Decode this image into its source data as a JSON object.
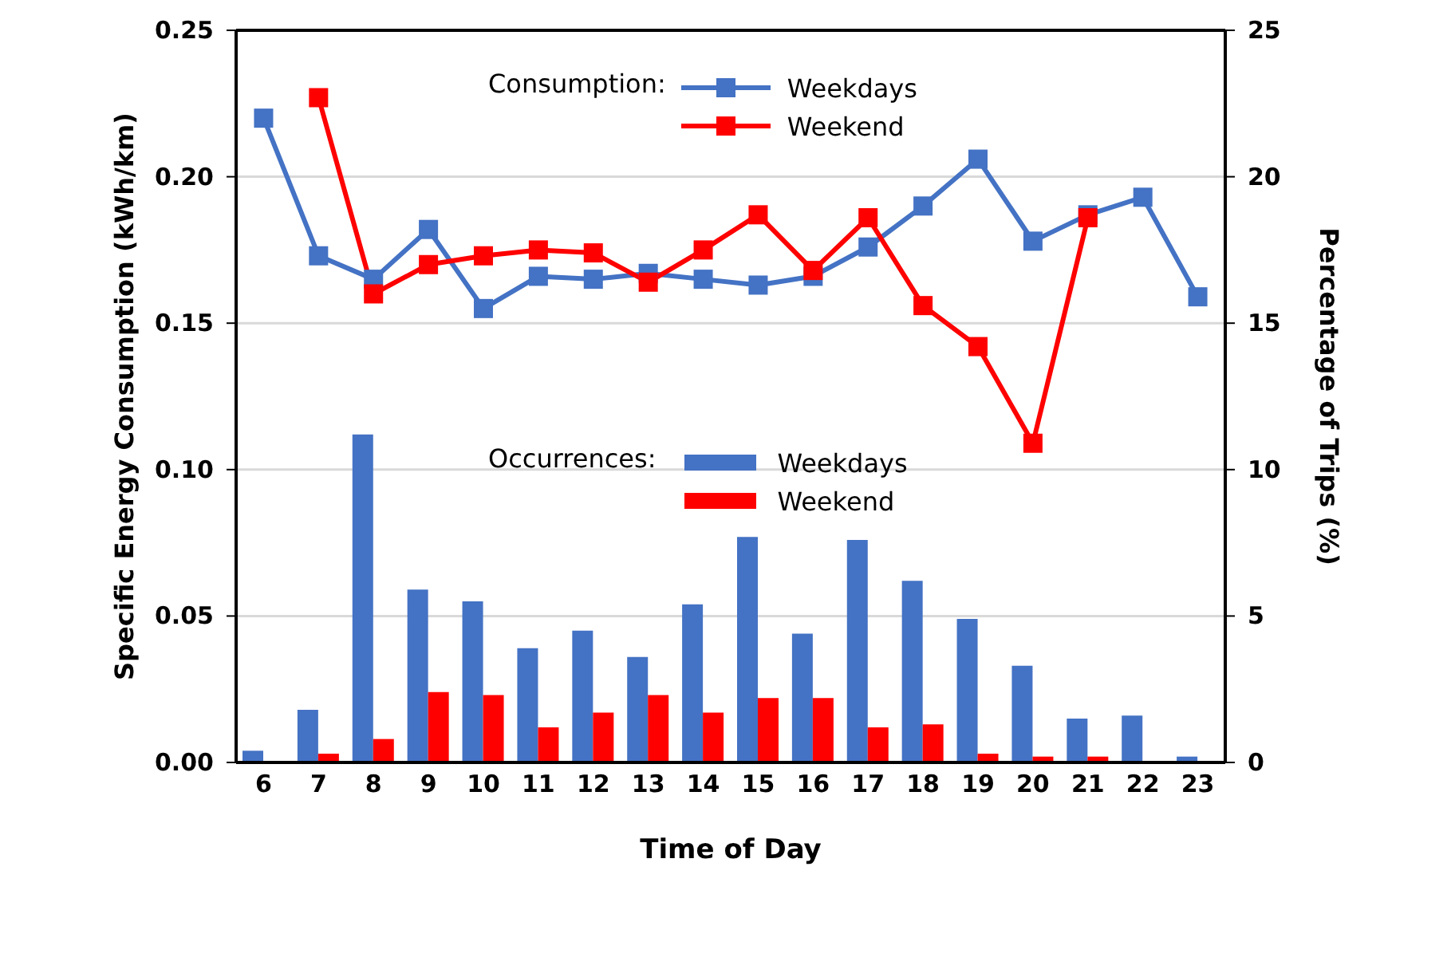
{
  "chart_data": {
    "type": "line",
    "xlabel": "Time of Day",
    "ylabel": "Specific Energy Consumption (kWh/km)",
    "y2label": "Percentage of Trips (%)",
    "categories": [
      "6",
      "7",
      "8",
      "9",
      "10",
      "11",
      "12",
      "13",
      "14",
      "15",
      "16",
      "17",
      "18",
      "19",
      "20",
      "21",
      "22",
      "23"
    ],
    "series": [
      {
        "name": "Weekdays",
        "color": "#4472c4",
        "values": [
          0.22,
          0.173,
          0.165,
          0.182,
          0.155,
          0.166,
          0.165,
          0.167,
          0.165,
          0.163,
          0.166,
          0.176,
          0.19,
          0.206,
          0.178,
          0.187,
          0.193,
          0.159
        ]
      },
      {
        "name": "Weekend",
        "color": "#ff0000",
        "values": [
          null,
          0.227,
          0.16,
          0.17,
          0.173,
          0.175,
          0.174,
          0.164,
          0.175,
          0.187,
          0.168,
          0.186,
          0.156,
          0.142,
          0.109,
          0.186,
          null,
          null
        ]
      },
      {
        "name": "Weekdays",
        "type": "bar",
        "axis": "y2",
        "color": "#4472c4",
        "values": [
          0.4,
          1.8,
          11.2,
          5.9,
          5.5,
          3.9,
          4.5,
          3.6,
          5.4,
          7.7,
          4.4,
          7.6,
          6.2,
          4.9,
          3.3,
          1.5,
          1.6,
          0.2
        ]
      },
      {
        "name": "Weekend",
        "type": "bar",
        "axis": "y2",
        "color": "#ff0000",
        "values": [
          0,
          0.3,
          0.8,
          2.4,
          2.3,
          1.2,
          1.7,
          2.3,
          1.7,
          2.2,
          2.2,
          1.2,
          1.3,
          0.3,
          0.2,
          0.2,
          0,
          0
        ]
      }
    ],
    "ylim": [
      0,
      0.25
    ],
    "yticks": [
      {
        "value": 0,
        "label": "0.00"
      },
      {
        "value": 0.05,
        "label": "0.05"
      },
      {
        "value": 0.1,
        "label": "0.10"
      },
      {
        "value": 0.15,
        "label": "0.15"
      },
      {
        "value": 0.2,
        "label": "0.20"
      },
      {
        "value": 0.25,
        "label": "0.25"
      }
    ],
    "y2lim": [
      0,
      25
    ],
    "y2ticks": [
      0,
      5,
      10,
      15,
      20,
      25
    ],
    "grid": "y",
    "marker": "square",
    "line_style": "solid",
    "legend": "top",
    "annotations": [
      "Consumption:",
      "Occurrences:"
    ]
  }
}
